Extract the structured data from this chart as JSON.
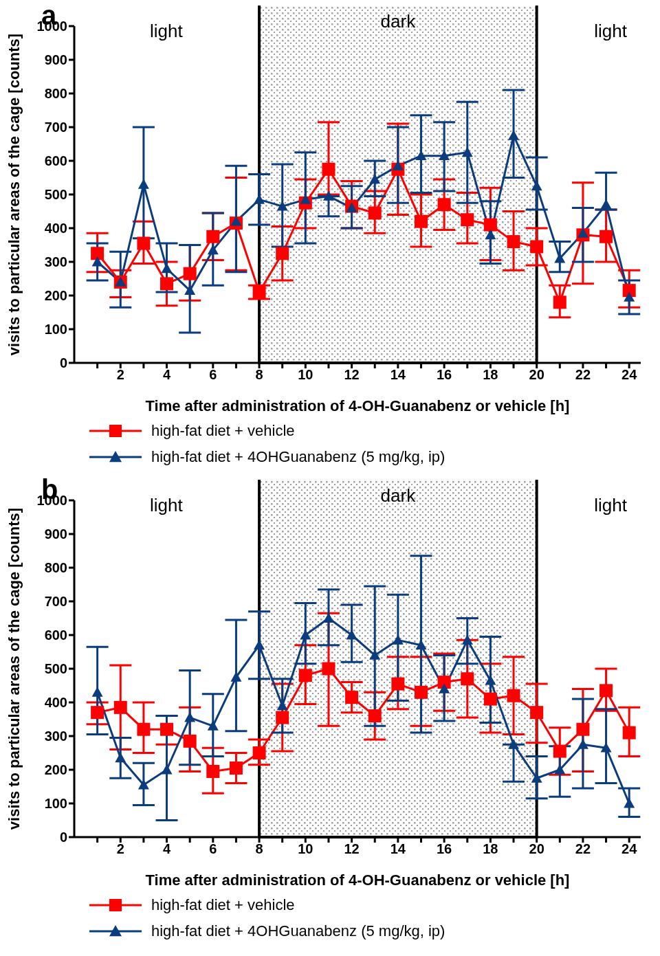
{
  "chart_data": [
    {
      "type": "line",
      "title": "a",
      "xlabel": "Time after administration of 4-OH-Guanabenz or vehicle [h]",
      "ylabel": "visits to particular areas of the cage [counts]",
      "x": [
        1,
        2,
        3,
        4,
        5,
        6,
        7,
        8,
        9,
        10,
        11,
        12,
        13,
        14,
        15,
        16,
        17,
        18,
        19,
        20,
        21,
        22,
        23,
        24
      ],
      "series": [
        {
          "name": "high-fat diet + vehicle",
          "color": "#ff0000",
          "marker": "square",
          "values": [
            325,
            240,
            355,
            235,
            265,
            375,
            415,
            210,
            325,
            475,
            575,
            465,
            445,
            575,
            420,
            470,
            425,
            410,
            360,
            345,
            180,
            380,
            375,
            215
          ],
          "errors": [
            [
              270,
              385
            ],
            [
              195,
              275
            ],
            [
              295,
              420
            ],
            [
              170,
              300
            ],
            [
              185,
              350
            ],
            [
              305,
              445
            ],
            [
              275,
              550
            ],
            [
              190,
              230
            ],
            [
              245,
              405
            ],
            [
              400,
              545
            ],
            [
              500,
              715
            ],
            [
              400,
              540
            ],
            [
              385,
              510
            ],
            [
              440,
              710
            ],
            [
              345,
              500
            ],
            [
              395,
              545
            ],
            [
              355,
              505
            ],
            [
              305,
              520
            ],
            [
              275,
              450
            ],
            [
              290,
              400
            ],
            [
              135,
              230
            ],
            [
              235,
              535
            ],
            [
              300,
              455
            ],
            [
              165,
              275
            ]
          ]
        },
        {
          "name": "high-fat diet + 4OHGuanabenz (5 mg/kg, ip)",
          "color": "#0b3c7d",
          "marker": "triangle",
          "values": [
            300,
            240,
            530,
            280,
            215,
            335,
            420,
            485,
            465,
            485,
            495,
            460,
            545,
            585,
            615,
            615,
            625,
            380,
            675,
            525,
            310,
            385,
            470,
            195
          ],
          "errors": [
            [
              245,
              355
            ],
            [
              165,
              330
            ],
            [
              370,
              700
            ],
            [
              210,
              355
            ],
            [
              90,
              350
            ],
            [
              230,
              445
            ],
            [
              270,
              585
            ],
            [
              410,
              560
            ],
            [
              345,
              590
            ],
            [
              355,
              625
            ],
            [
              435,
              495
            ],
            [
              400,
              525
            ],
            [
              495,
              600
            ],
            [
              475,
              700
            ],
            [
              505,
              735
            ],
            [
              510,
              715
            ],
            [
              475,
              775
            ],
            [
              295,
              480
            ],
            [
              550,
              810
            ],
            [
              455,
              610
            ],
            [
              270,
              360
            ],
            [
              300,
              460
            ],
            [
              455,
              565
            ],
            [
              145,
              245
            ]
          ]
        }
      ],
      "xlim": [
        0,
        24.5
      ],
      "xticks": [
        {
          "value": 1,
          "label": null
        },
        2,
        {
          "value": 3,
          "label": null
        },
        4,
        {
          "value": 5,
          "label": null
        },
        6,
        {
          "value": 7,
          "label": null
        },
        8,
        {
          "value": 9,
          "label": null
        },
        10,
        {
          "value": 11,
          "label": null
        },
        12,
        {
          "value": 13,
          "label": null
        },
        14,
        {
          "value": 15,
          "label": null
        },
        16,
        {
          "value": 17,
          "label": null
        },
        18,
        {
          "value": 19,
          "label": null
        },
        20,
        {
          "value": 21,
          "label": null
        },
        22,
        {
          "value": 23,
          "label": null
        },
        24
      ],
      "ylim": [
        0,
        1000
      ],
      "yticks": [
        0,
        100,
        200,
        300,
        400,
        500,
        600,
        700,
        800,
        900,
        1000
      ],
      "bands": [
        {
          "axis": "x",
          "from": 8,
          "to": 20,
          "label": "dark"
        }
      ],
      "annotations": [
        "light",
        "light"
      ],
      "grid": false,
      "legend": "bottom",
      "line_style": "solid"
    },
    {
      "type": "line",
      "title": "b",
      "xlabel": "Time after administration of 4-OH-Guanabenz or vehicle [h]",
      "ylabel": "visits to particular areas of the cage [counts]",
      "x": [
        1,
        2,
        3,
        4,
        5,
        6,
        7,
        8,
        9,
        10,
        11,
        12,
        13,
        14,
        15,
        16,
        17,
        18,
        19,
        20,
        21,
        22,
        23,
        24
      ],
      "series": [
        {
          "name": "high-fat diet + vehicle",
          "color": "#ff0000",
          "marker": "square",
          "values": [
            370,
            385,
            320,
            320,
            285,
            195,
            205,
            250,
            355,
            480,
            500,
            415,
            360,
            455,
            430,
            460,
            470,
            410,
            420,
            370,
            255,
            320,
            435,
            310
          ],
          "errors": [
            [
              335,
              400
            ],
            [
              260,
              510
            ],
            [
              250,
              400
            ],
            [
              275,
              360
            ],
            [
              195,
              385
            ],
            [
              130,
              265
            ],
            [
              160,
              250
            ],
            [
              215,
              290
            ],
            [
              255,
              455
            ],
            [
              395,
              570
            ],
            [
              330,
              665
            ],
            [
              370,
              460
            ],
            [
              290,
              430
            ],
            [
              380,
              535
            ],
            [
              330,
              535
            ],
            [
              375,
              545
            ],
            [
              355,
              585
            ],
            [
              310,
              515
            ],
            [
              305,
              535
            ],
            [
              280,
              455
            ],
            [
              185,
              325
            ],
            [
              195,
              440
            ],
            [
              375,
              500
            ],
            [
              240,
              385
            ]
          ]
        },
        {
          "name": "high-fat diet + 4OHGuanabenz (5 mg/kg, ip)",
          "color": "#0b3c7d",
          "marker": "triangle",
          "values": [
            430,
            235,
            155,
            200,
            355,
            330,
            475,
            570,
            390,
            600,
            650,
            600,
            540,
            585,
            570,
            440,
            585,
            465,
            275,
            175,
            200,
            275,
            265,
            100
          ],
          "errors": [
            [
              305,
              565
            ],
            [
              175,
              295
            ],
            [
              95,
              220
            ],
            [
              50,
              360
            ],
            [
              215,
              495
            ],
            [
              240,
              425
            ],
            [
              315,
              645
            ],
            [
              470,
              670
            ],
            [
              310,
              470
            ],
            [
              515,
              695
            ],
            [
              570,
              735
            ],
            [
              520,
              690
            ],
            [
              330,
              745
            ],
            [
              405,
              720
            ],
            [
              310,
              835
            ],
            [
              345,
              540
            ],
            [
              515,
              650
            ],
            [
              340,
              595
            ],
            [
              165,
              275
            ],
            [
              115,
              240
            ],
            [
              120,
              270
            ],
            [
              145,
              410
            ],
            [
              160,
              380
            ],
            [
              60,
              145
            ]
          ]
        }
      ],
      "xlim": [
        0,
        24.5
      ],
      "xticks": [
        {
          "value": 1,
          "label": null
        },
        2,
        {
          "value": 3,
          "label": null
        },
        4,
        {
          "value": 5,
          "label": null
        },
        6,
        {
          "value": 7,
          "label": null
        },
        8,
        {
          "value": 9,
          "label": null
        },
        10,
        {
          "value": 11,
          "label": null
        },
        12,
        {
          "value": 13,
          "label": null
        },
        14,
        {
          "value": 15,
          "label": null
        },
        16,
        {
          "value": 17,
          "label": null
        },
        18,
        {
          "value": 19,
          "label": null
        },
        20,
        {
          "value": 21,
          "label": null
        },
        22,
        {
          "value": 23,
          "label": null
        },
        24
      ],
      "ylim": [
        0,
        1000
      ],
      "yticks": [
        0,
        100,
        200,
        300,
        400,
        500,
        600,
        700,
        800,
        900,
        1000
      ],
      "bands": [
        {
          "axis": "x",
          "from": 8,
          "to": 20,
          "label": "dark"
        }
      ],
      "annotations": [
        "light",
        "light"
      ],
      "grid": false,
      "legend": "bottom",
      "line_style": "solid"
    }
  ]
}
